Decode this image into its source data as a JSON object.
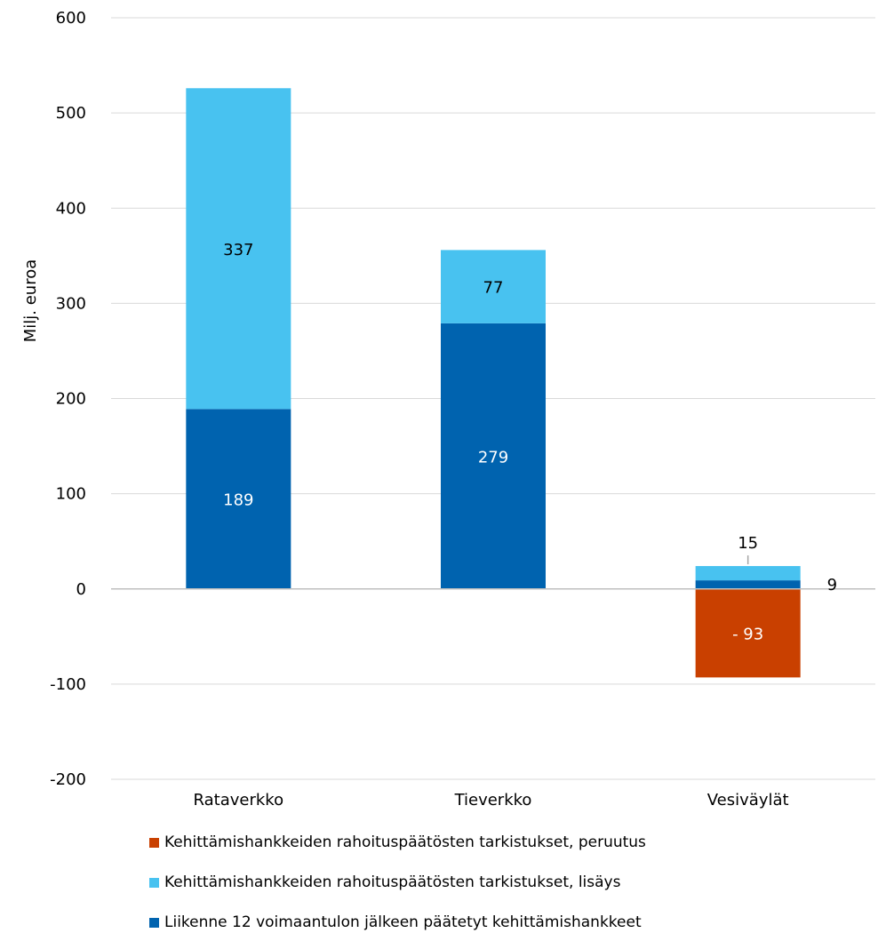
{
  "chart_data": {
    "type": "bar",
    "stacked": true,
    "ylabel": "Milj. euroa",
    "ylim": [
      -200,
      600
    ],
    "yticks": [
      600,
      500,
      400,
      300,
      200,
      100,
      0,
      -100,
      -200
    ],
    "grid": true,
    "legend_position": "bottom",
    "categories": [
      "Rataverkko",
      "Tieverkko",
      "Vesiväylät"
    ],
    "series": [
      {
        "name": "Liikenne 12 voimaantulon jälkeen päätetyt kehittämishankkeet",
        "color": "#0063AF",
        "values": [
          189,
          279,
          9
        ],
        "labels": [
          "189",
          "279",
          "9"
        ]
      },
      {
        "name": "Kehittämishankkeiden rahoituspäätösten tarkistukset, lisäys",
        "color": "#48C2F0",
        "values": [
          337,
          77,
          15
        ],
        "labels": [
          "337",
          "77",
          "15"
        ]
      },
      {
        "name": "Kehittämishankkeiden rahoituspäätösten tarkistukset, peruutus",
        "color": "#C94000",
        "values": [
          0,
          0,
          -93
        ],
        "labels": [
          "",
          "",
          "- 93"
        ]
      }
    ]
  }
}
